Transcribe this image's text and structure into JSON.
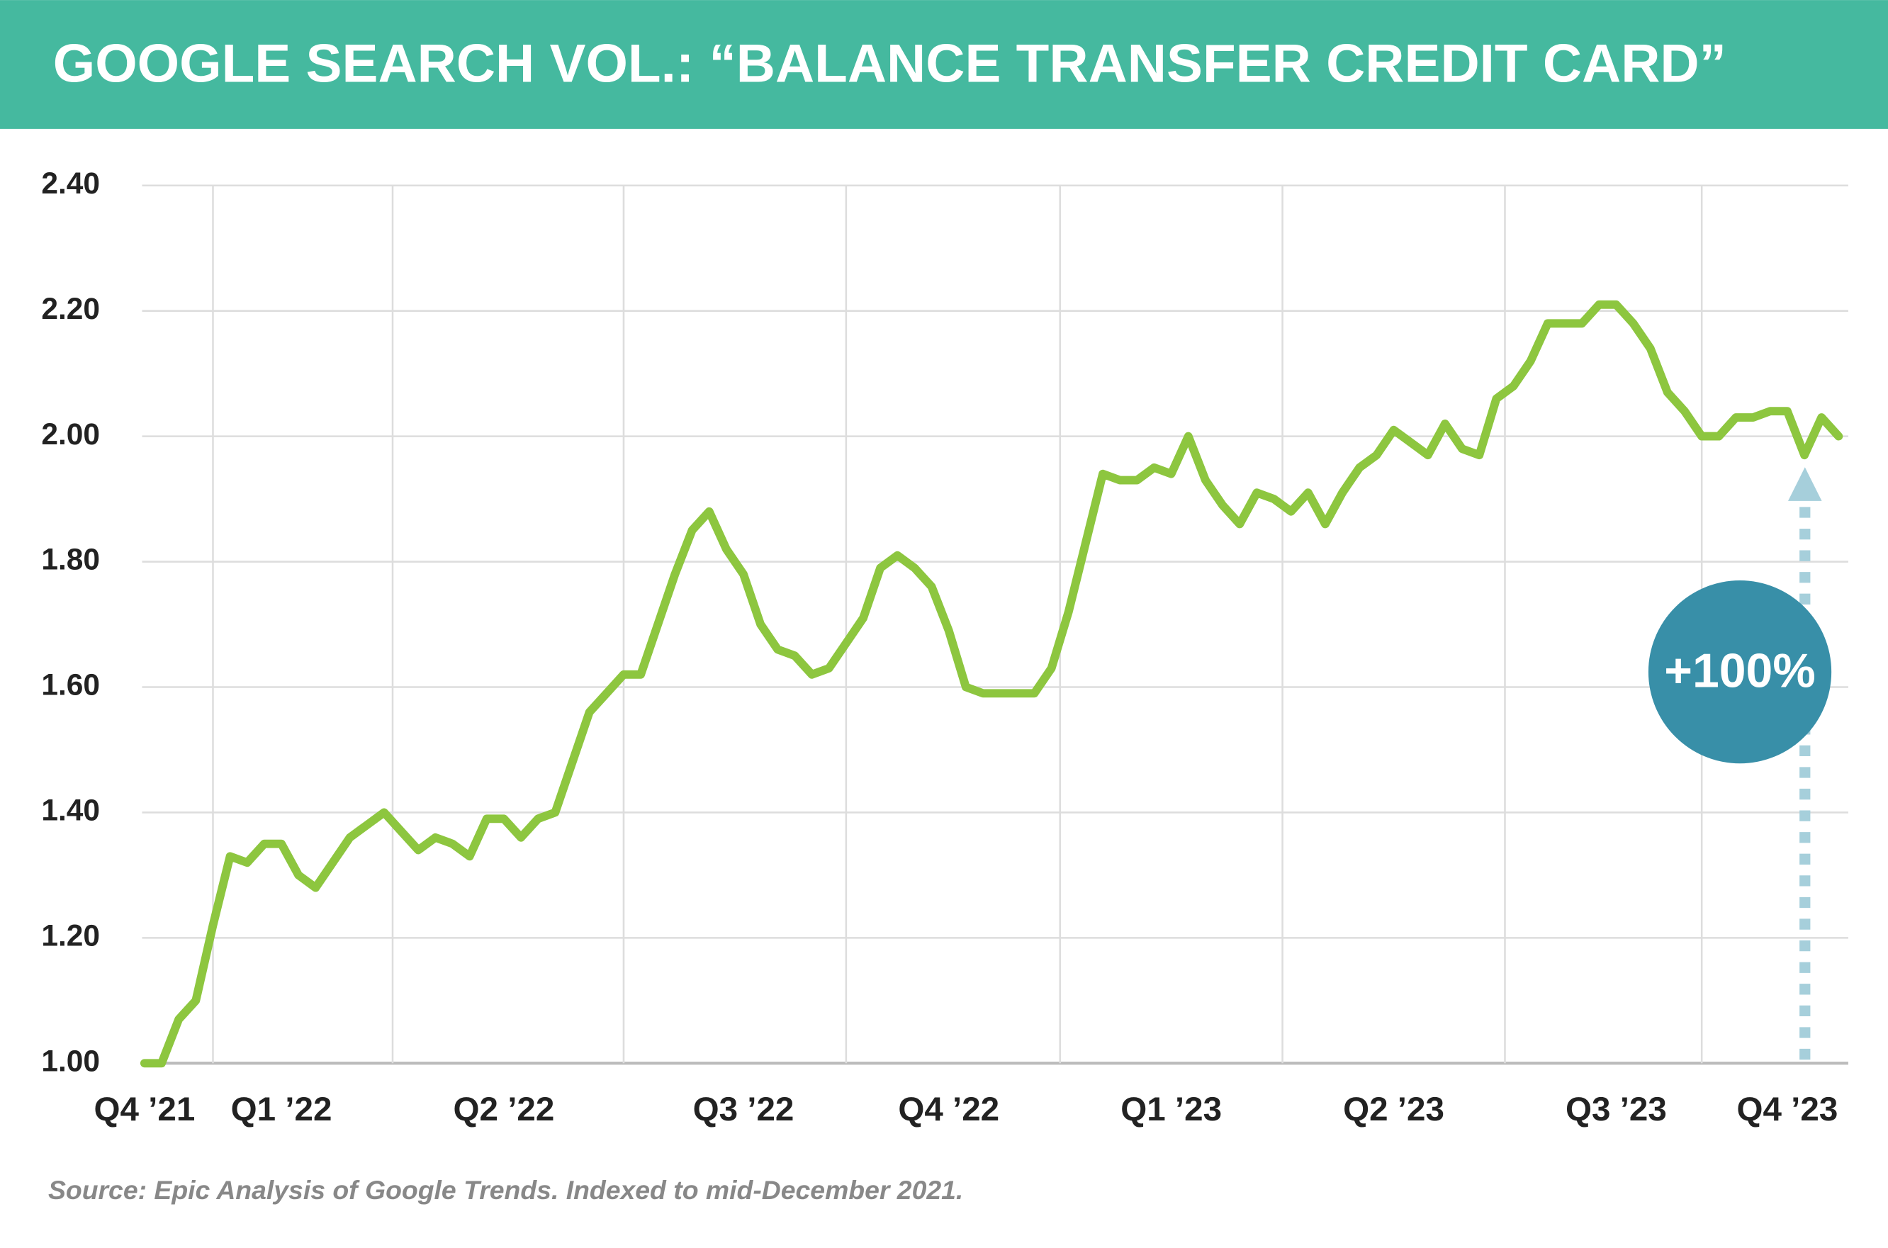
{
  "chart_data": {
    "type": "line",
    "title": "GOOGLE SEARCH VOL.: “BALANCE TRANSFER CREDIT CARD”",
    "annotation": "+100%",
    "source": "Source: Epic Analysis of Google Trends. Indexed to mid-December 2021.",
    "color": "#8dc63f",
    "grid": true,
    "categories": [
      "Q4 ’21",
      null,
      null,
      null,
      null,
      null,
      null,
      null,
      "Q1 ’22",
      null,
      null,
      null,
      null,
      null,
      null,
      null,
      null,
      null,
      null,
      null,
      null,
      "Q2 ’22",
      null,
      null,
      null,
      null,
      null,
      null,
      null,
      null,
      null,
      null,
      null,
      null,
      null,
      "Q3 ’22",
      null,
      null,
      null,
      null,
      null,
      null,
      null,
      null,
      null,
      null,
      null,
      "Q4 ’22",
      null,
      null,
      null,
      null,
      null,
      null,
      null,
      null,
      null,
      null,
      null,
      null,
      "Q1 ’23",
      null,
      null,
      null,
      null,
      null,
      null,
      null,
      null,
      null,
      null,
      null,
      null,
      "Q2 ’23",
      null,
      null,
      null,
      null,
      null,
      null,
      null,
      null,
      null,
      null,
      null,
      null,
      "Q3 ’23",
      null,
      null,
      null,
      null,
      null,
      null,
      null,
      null,
      null,
      "Q4 ’23",
      null,
      null,
      null
    ],
    "values": [
      1.0,
      1.0,
      1.07,
      1.1,
      1.22,
      1.33,
      1.32,
      1.35,
      1.35,
      1.3,
      1.28,
      1.32,
      1.36,
      1.38,
      1.4,
      1.37,
      1.34,
      1.36,
      1.35,
      1.33,
      1.39,
      1.39,
      1.36,
      1.39,
      1.4,
      1.48,
      1.56,
      1.59,
      1.62,
      1.62,
      1.7,
      1.78,
      1.85,
      1.88,
      1.82,
      1.78,
      1.7,
      1.66,
      1.65,
      1.62,
      1.63,
      1.67,
      1.71,
      1.79,
      1.81,
      1.79,
      1.76,
      1.69,
      1.6,
      1.59,
      1.59,
      1.59,
      1.59,
      1.63,
      1.72,
      1.83,
      1.94,
      1.93,
      1.93,
      1.95,
      1.94,
      2.0,
      1.93,
      1.89,
      1.86,
      1.91,
      1.9,
      1.88,
      1.91,
      1.86,
      1.91,
      1.95,
      1.97,
      2.01,
      1.99,
      1.97,
      2.02,
      1.98,
      1.97,
      2.06,
      2.08,
      2.12,
      2.18,
      2.18,
      2.18,
      2.21,
      2.21,
      2.18,
      2.14,
      2.07,
      2.04,
      2.0,
      2.0,
      2.03,
      2.03,
      2.04,
      2.04,
      1.97,
      2.03,
      2.0
    ],
    "ylim": [
      1.0,
      2.4
    ],
    "yticks": [
      {
        "value": 1.0,
        "label": "1.00"
      },
      {
        "value": 1.2,
        "label": "1.20"
      },
      {
        "value": 1.4,
        "label": "1.40"
      },
      {
        "value": 1.6,
        "label": "1.60"
      },
      {
        "value": 1.8,
        "label": "1.80"
      },
      {
        "value": 2.0,
        "label": "2.00"
      },
      {
        "value": 2.2,
        "label": "2.20"
      },
      {
        "value": 2.4,
        "label": "2.40"
      }
    ]
  }
}
